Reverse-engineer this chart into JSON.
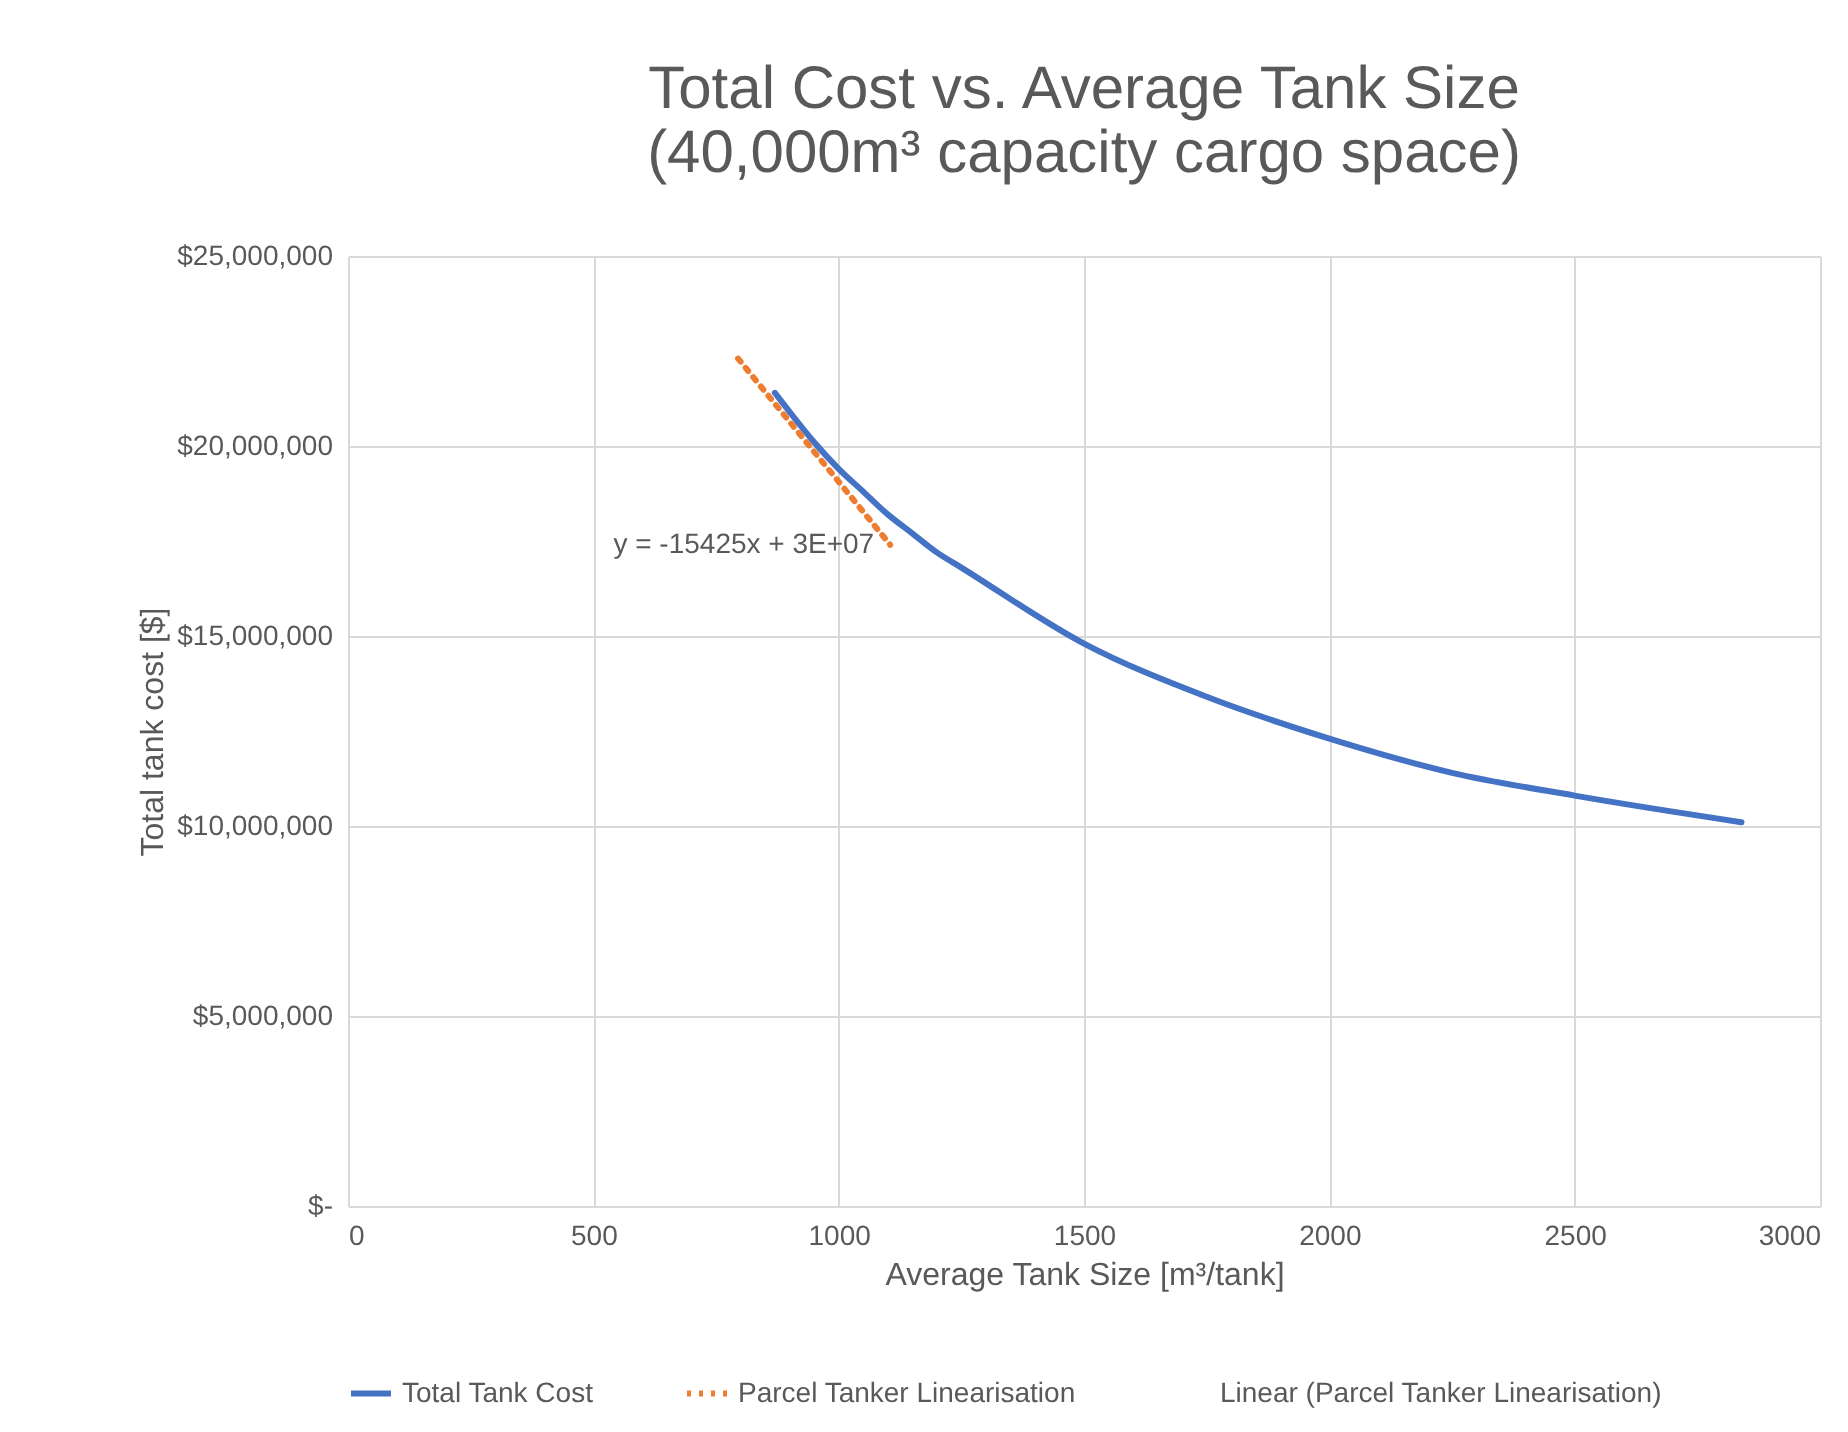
{
  "chart_data": {
    "type": "line",
    "title": "Total Cost vs. Average Tank Size\n(40,000m³ capacity cargo space)",
    "xlabel": "Average Tank Size [m³/tank]",
    "ylabel": "Total tank cost [$]",
    "xlim": [
      0,
      3000
    ],
    "xticks": [
      0,
      500,
      1000,
      1500,
      2000,
      2500,
      3000
    ],
    "ylim": [
      0,
      25000000
    ],
    "yticks": [
      {
        "value": 0,
        "label": "$-"
      },
      {
        "value": 5000000,
        "label": "$5,000,000"
      },
      {
        "value": 10000000,
        "label": "$10,000,000"
      },
      {
        "value": 15000000,
        "label": "$15,000,000"
      },
      {
        "value": 20000000,
        "label": "$20,000,000"
      },
      {
        "value": 25000000,
        "label": "$25,000,000"
      }
    ],
    "grid": true,
    "legend": "bottom",
    "marker": "none",
    "series": [
      {
        "name": "Total Tank Cost",
        "color": "#4472c4",
        "line_style": "solid",
        "x": [
          870,
          900,
          950,
          1000,
          1050,
          1100,
          1150,
          1200,
          1250,
          1500,
          1750,
          2000,
          2250,
          2500,
          2840
        ],
        "values": [
          21400000,
          20900000,
          20100000,
          19400000,
          18800000,
          18200000,
          17700000,
          17200000,
          16800000,
          14800000,
          13400000,
          12300000,
          11400000,
          10800000,
          10100000
        ]
      },
      {
        "name": "Parcel Tanker Linearisation",
        "color": "#ed7d31",
        "line_style": "dotted",
        "x": [
          795,
          1105
        ],
        "values": [
          22300000,
          17400000
        ]
      },
      {
        "name": "Linear (Parcel Tanker Linearisation)"
      }
    ],
    "annotations": [
      {
        "text": "y = -15425x + 3E+07",
        "x": 1105,
        "y": 17400000
      }
    ]
  }
}
